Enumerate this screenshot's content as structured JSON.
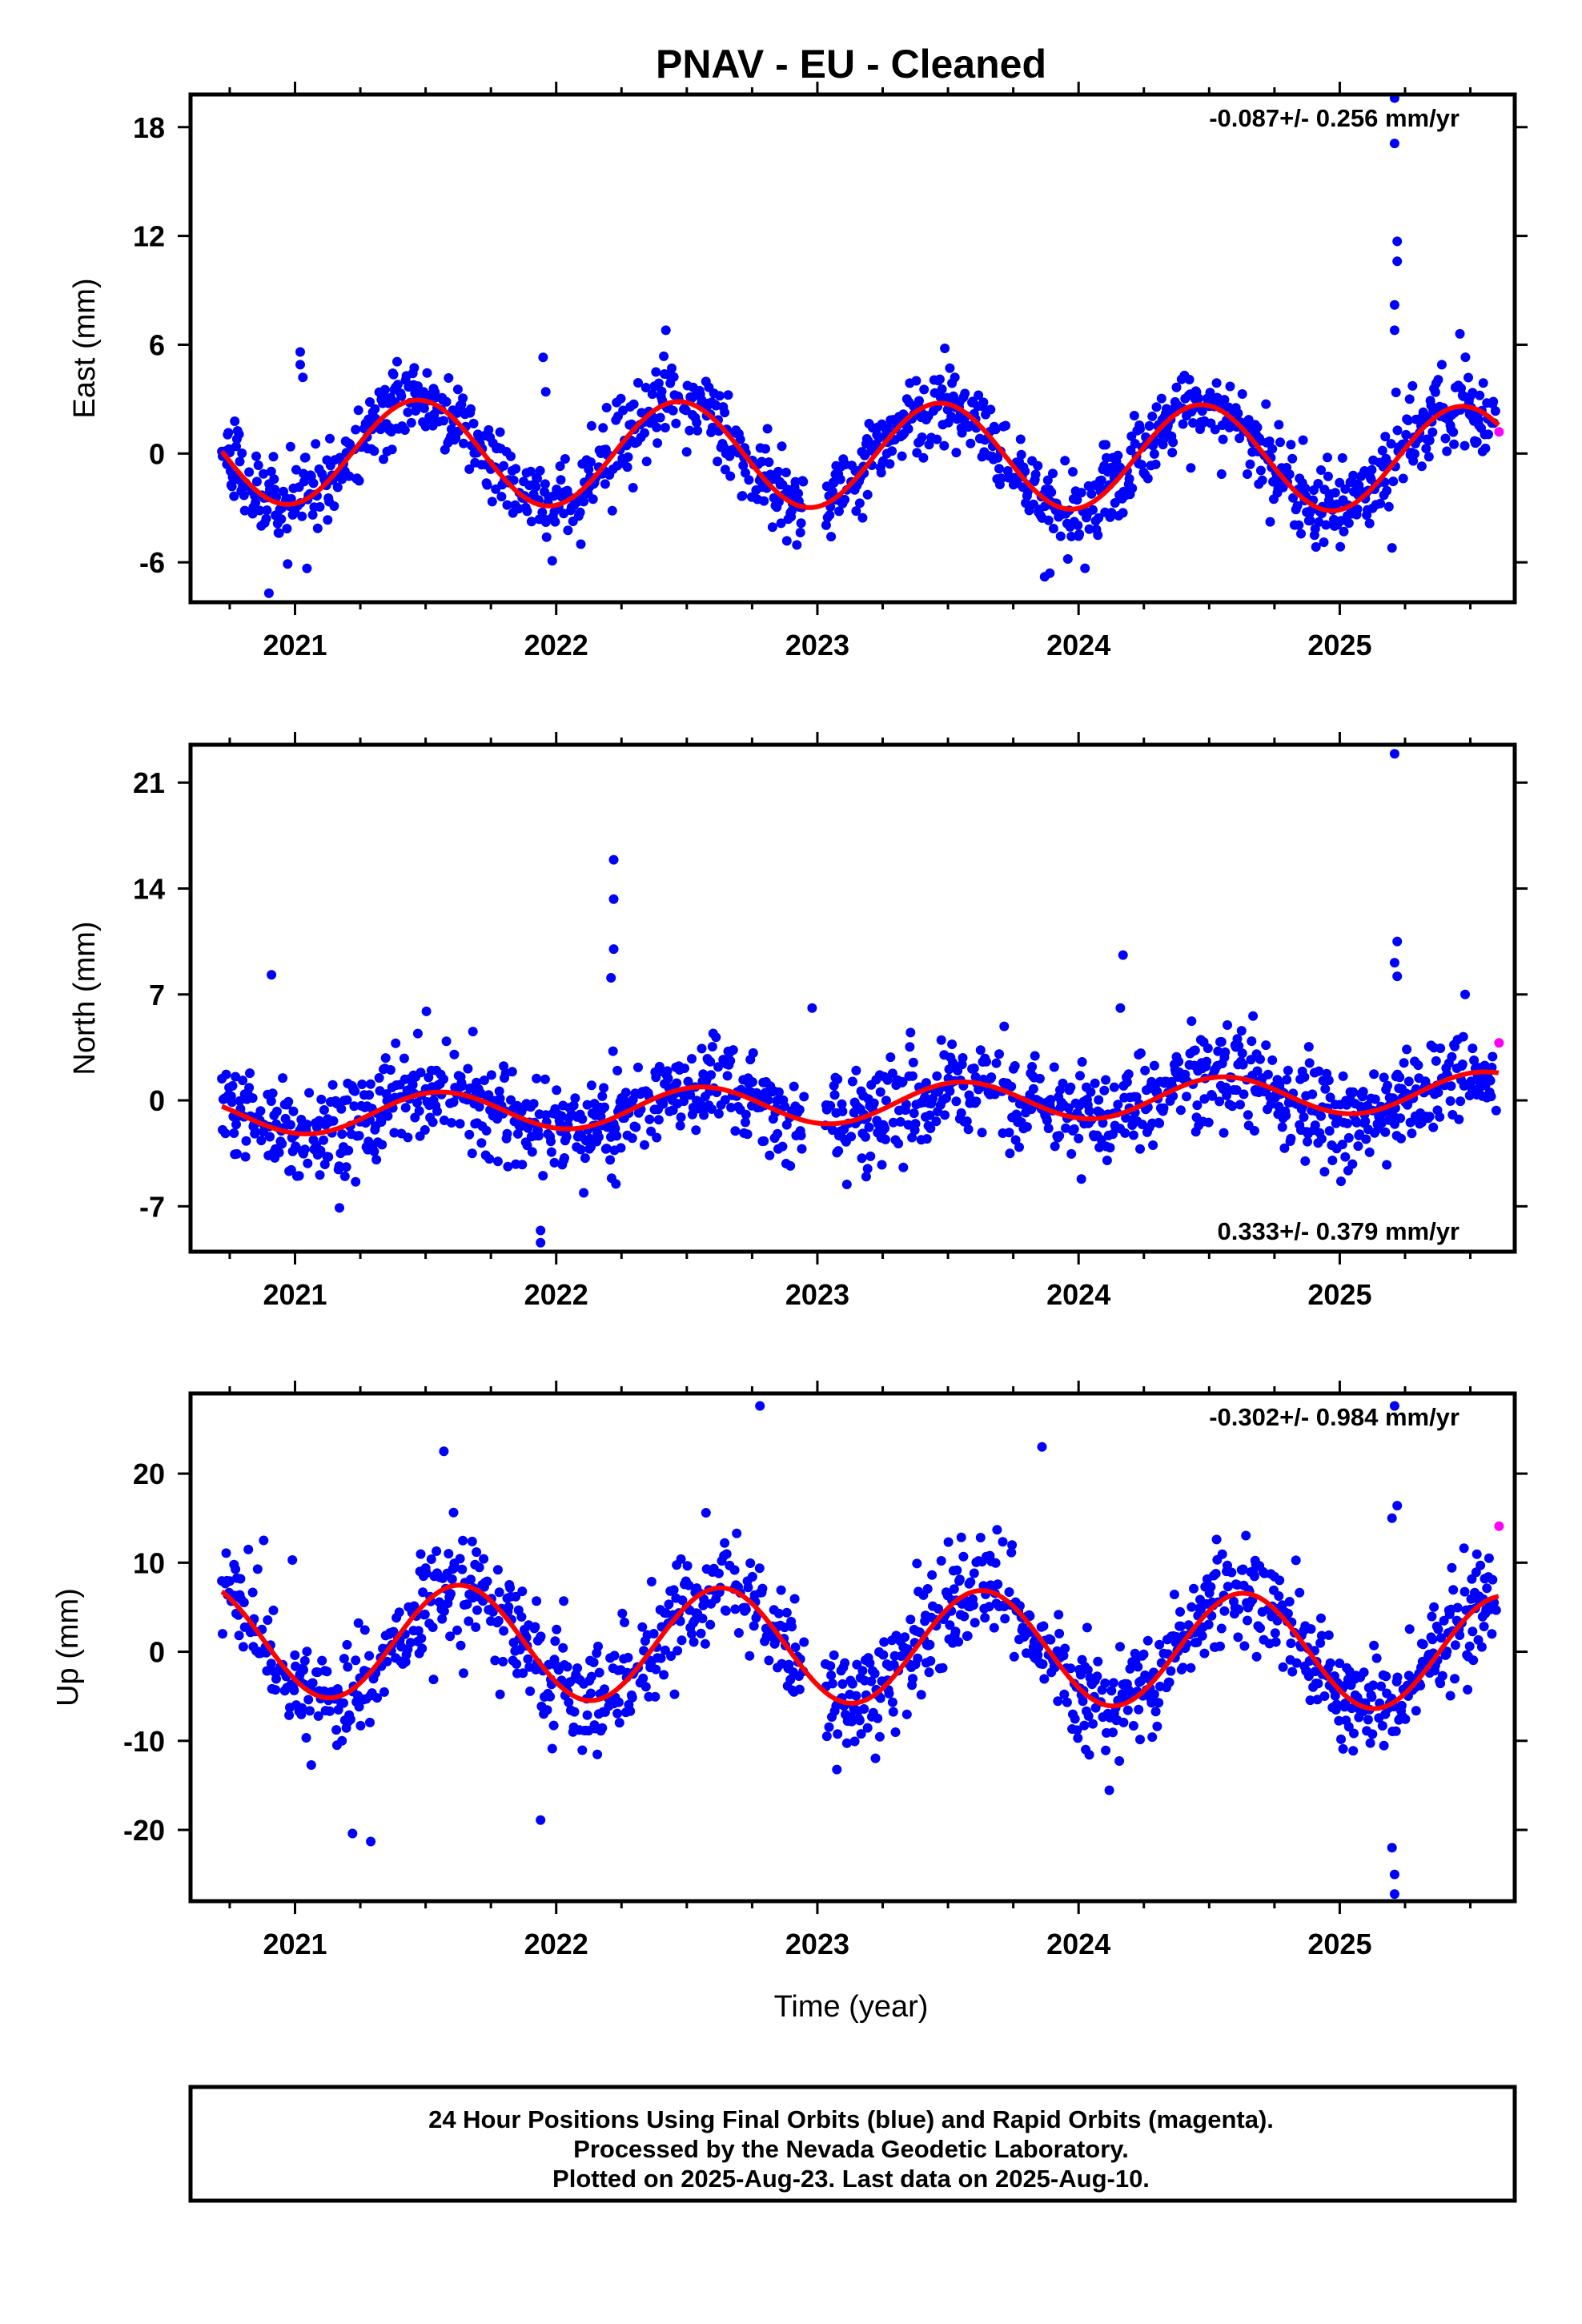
{
  "title": "PNAV  - EU - Cleaned",
  "xlabel": "Time (year)",
  "footer": {
    "line1": "24 Hour Positions Using Final Orbits (blue) and Rapid Orbits (magenta).",
    "line2": "Processed by the Nevada Geodetic Laboratory.",
    "line3": "Plotted on 2025-Aug-23. Last data on 2025-Aug-10."
  },
  "colors": {
    "final_orbits": "#0000ff",
    "rapid_orbits": "#ff00ff",
    "fit": "#ff0000"
  },
  "chart_data": [
    {
      "type": "scatter",
      "component": "east",
      "ylabel": "East (mm)",
      "rate_label": "-0.087+/- 0.256 mm/yr",
      "xlim": [
        2020.6,
        2025.67
      ],
      "ylim": [
        -8.2,
        19.8
      ],
      "yticks": [
        -6,
        0,
        6,
        12,
        18
      ],
      "xticks": [
        2021,
        2022,
        2023,
        2024,
        2025
      ],
      "fit": {
        "offset": -0.1,
        "trend": -0.087,
        "annual_amp": 2.9,
        "annual_peak": 0.47,
        "semiannual_amp": 0.0,
        "semiannual_peak": 0.0
      },
      "noise_sd": 1.1,
      "outliers": [
        [
          2020.9,
          -7.7
        ],
        [
          2021.02,
          5.6
        ],
        [
          2021.02,
          4.9
        ],
        [
          2021.03,
          4.2
        ],
        [
          2021.95,
          5.3
        ],
        [
          2021.96,
          3.4
        ],
        [
          2022.42,
          6.8
        ],
        [
          2023.87,
          -6.8
        ],
        [
          2023.89,
          -6.6
        ],
        [
          2025.21,
          19.6
        ],
        [
          2025.21,
          17.1
        ],
        [
          2025.22,
          11.7
        ],
        [
          2025.22,
          10.6
        ],
        [
          2025.21,
          8.2
        ],
        [
          2025.21,
          6.8
        ],
        [
          2025.2,
          -5.2
        ],
        [
          2025.46,
          6.6
        ]
      ],
      "rapid_points": [
        [
          2025.61,
          1.2
        ]
      ]
    },
    {
      "type": "scatter",
      "component": "north",
      "ylabel": "North (mm)",
      "rate_label": "0.333+/- 0.379 mm/yr",
      "xlim": [
        2020.6,
        2025.67
      ],
      "ylim": [
        -10.0,
        23.5
      ],
      "yticks": [
        -7,
        0,
        7,
        14,
        21
      ],
      "xticks": [
        2021,
        2022,
        2023,
        2024,
        2025
      ],
      "fit": {
        "offset": -0.2,
        "trend": 0.333,
        "annual_amp": 1.3,
        "annual_peak": 0.55,
        "semiannual_amp": 0.0,
        "semiannual_peak": 0.0
      },
      "noise_sd": 1.6,
      "outliers": [
        [
          2020.91,
          8.3
        ],
        [
          2021.17,
          -7.1
        ],
        [
          2021.94,
          -8.6
        ],
        [
          2021.94,
          -9.4
        ],
        [
          2022.22,
          15.9
        ],
        [
          2022.22,
          13.3
        ],
        [
          2022.22,
          10.0
        ],
        [
          2022.21,
          8.1
        ],
        [
          2022.98,
          6.1
        ],
        [
          2024.17,
          9.6
        ],
        [
          2024.16,
          6.1
        ],
        [
          2025.21,
          22.9
        ],
        [
          2025.22,
          10.5
        ],
        [
          2025.21,
          9.1
        ],
        [
          2025.22,
          8.2
        ],
        [
          2025.48,
          7.0
        ]
      ],
      "rapid_points": [
        [
          2025.61,
          3.8
        ]
      ]
    },
    {
      "type": "scatter",
      "component": "up",
      "ylabel": "Up (mm)",
      "rate_label": "-0.302+/- 0.984 mm/yr",
      "xlim": [
        2020.6,
        2025.67
      ],
      "ylim": [
        -28.0,
        29.0
      ],
      "yticks": [
        -20,
        -10,
        0,
        10,
        20
      ],
      "xticks": [
        2021,
        2022,
        2023,
        2024,
        2025
      ],
      "fit": {
        "offset": 0.6,
        "trend": -0.302,
        "annual_amp": 6.4,
        "annual_peak": 0.63,
        "semiannual_amp": 0.0,
        "semiannual_peak": 0.0
      },
      "noise_sd": 3.1,
      "outliers": [
        [
          2020.88,
          12.5
        ],
        [
          2020.99,
          10.3
        ],
        [
          2021.22,
          -20.4
        ],
        [
          2021.29,
          -21.3
        ],
        [
          2021.57,
          22.5
        ],
        [
          2021.94,
          -18.9
        ],
        [
          2022.78,
          27.6
        ],
        [
          2023.86,
          23.0
        ],
        [
          2025.21,
          27.6
        ],
        [
          2025.2,
          -22.0
        ],
        [
          2025.21,
          -25.0
        ],
        [
          2025.21,
          -27.2
        ],
        [
          2025.22,
          16.4
        ],
        [
          2025.2,
          15.0
        ]
      ],
      "rapid_points": [
        [
          2025.61,
          14.1
        ]
      ]
    }
  ]
}
